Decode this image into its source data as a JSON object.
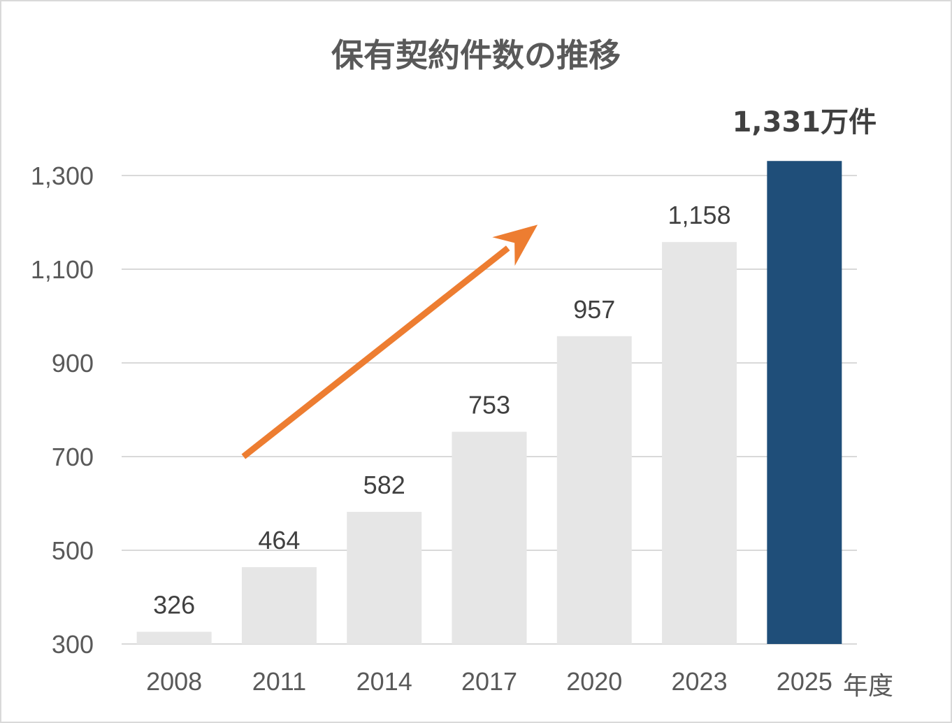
{
  "chart_data": {
    "type": "bar",
    "title": "保有契約件数の推移",
    "categories": [
      "2008",
      "2011",
      "2014",
      "2017",
      "2020",
      "2023",
      "2025"
    ],
    "values": [
      326,
      464,
      582,
      753,
      957,
      1158,
      1331
    ],
    "data_labels": [
      "326",
      "464",
      "582",
      "753",
      "957",
      "1,158",
      "1,331万件"
    ],
    "x_unit": "年度",
    "ylim": [
      300,
      1300
    ],
    "yticks": [
      300,
      500,
      700,
      900,
      1100,
      1300
    ],
    "ytick_labels": [
      "300",
      "500",
      "700",
      "900",
      "1,100",
      "1,300"
    ],
    "grid": true,
    "highlight_index": 6,
    "colors": {
      "bar": "#e6e6e6",
      "highlight": "#1f4e79",
      "arrow": "#ed7d31",
      "grid": "#d9d9d9",
      "text": "#595959"
    },
    "annotation": {
      "type": "arrow",
      "from": {
        "x": 0.66,
        "y": 700
      },
      "to": {
        "x": 3.46,
        "y": 1195
      }
    }
  }
}
